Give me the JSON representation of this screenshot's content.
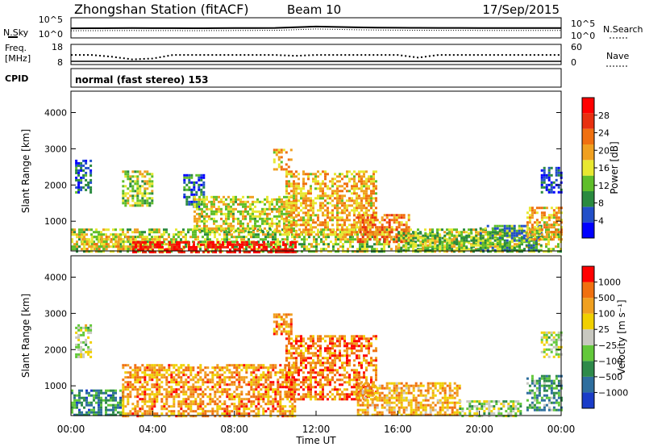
{
  "header": {
    "station": "Zhongshan Station (fitACF)",
    "beam": "Beam 10",
    "date": "17/Sep/2015"
  },
  "panels": {
    "noise": {
      "left_label": "N.Sky",
      "right_label": "N.Search",
      "ticks_left": [
        "10^5",
        "10^0"
      ],
      "ticks_right": [
        "10^5",
        "10^0"
      ]
    },
    "freq": {
      "left_label_1": "Freq.",
      "left_label_2": "[MHz]",
      "right_label": "Nave",
      "ticks_left": [
        "18",
        "8"
      ],
      "ticks_right": [
        "60",
        "0"
      ]
    },
    "cpid": {
      "label": "CPID",
      "text": "normal (fast stereo) 153"
    }
  },
  "colors": {
    "power_scale": [
      "#0000ff",
      "#224fc8",
      "#2a8a3f",
      "#5fbe2a",
      "#e8e830",
      "#f0a020",
      "#f07010",
      "#e83010",
      "#ff0000"
    ],
    "velocity_scale": [
      "#1a3cc8",
      "#2e6e9e",
      "#2e8a4a",
      "#62c83a",
      "#c8c8c0",
      "#f0d000",
      "#f0a020",
      "#f07010",
      "#ff0000"
    ]
  },
  "chart_data": [
    {
      "type": "line",
      "name": "noise-panel",
      "x_unit": "hours UT",
      "x": [
        0,
        1,
        2,
        3,
        4,
        5,
        6,
        7,
        8,
        9,
        10,
        11,
        12,
        13,
        14,
        15,
        16,
        17,
        18,
        19,
        20,
        21,
        22,
        23,
        24
      ],
      "series": [
        {
          "values": [
            300,
            320,
            330,
            350,
            340,
            330,
            320,
            330,
            350,
            380,
            420,
            700,
            1200,
            900,
            650,
            520,
            470,
            440,
            410,
            400,
            390,
            380,
            370,
            360,
            350
          ]
        }
      ],
      "ylog": true
    },
    {
      "type": "line",
      "name": "freq-nave-panel",
      "x": [
        0,
        1,
        2,
        3,
        4,
        5,
        6,
        7,
        8,
        9,
        10,
        11,
        12,
        13,
        14,
        15,
        16,
        17,
        18,
        19,
        20,
        21,
        22,
        23,
        24
      ],
      "series": [
        {
          "values": [
            12.5,
            12.5,
            11.5,
            10,
            10.5,
            12.5,
            12.5,
            12.5,
            12.5,
            12.5,
            12.5,
            12,
            12.5,
            12.5,
            12.5,
            12.5,
            12.5,
            11,
            12.5,
            12.5,
            12.5,
            12.5,
            12.5,
            12.5,
            12.5
          ]
        }
      ],
      "ylim": [
        8,
        18
      ]
    },
    {
      "type": "heatmap",
      "name": "power-panel",
      "ylabel": "Slant Range [km]",
      "colorbar_label": "Power [dB]",
      "colorbar_ticks": [
        "28",
        "24",
        "20",
        "16",
        "12",
        "8",
        "4"
      ],
      "colorbar_range": [
        0,
        32
      ],
      "y_ticks": [
        "4000",
        "3000",
        "2000",
        "1000"
      ],
      "ylim": [
        180,
        4590
      ],
      "xlim": [
        0,
        24
      ],
      "regions": [
        {
          "t": [
            0,
            24
          ],
          "r": [
            180,
            800
          ],
          "level": 0.45
        },
        {
          "t": [
            0.5,
            4.5
          ],
          "r": [
            200,
            600
          ],
          "level": 0.55
        },
        {
          "t": [
            3,
            11
          ],
          "r": [
            180,
            450
          ],
          "level": 0.95
        },
        {
          "t": [
            0.2,
            1
          ],
          "r": [
            1800,
            2700
          ],
          "level": 0.2
        },
        {
          "t": [
            2.5,
            4
          ],
          "r": [
            1400,
            2400
          ],
          "level": 0.45
        },
        {
          "t": [
            5.5,
            6.5
          ],
          "r": [
            1400,
            2300
          ],
          "level": 0.2
        },
        {
          "t": [
            6,
            11
          ],
          "r": [
            700,
            1700
          ],
          "level": 0.5
        },
        {
          "t": [
            9.9,
            10.8
          ],
          "r": [
            2400,
            3000
          ],
          "level": 0.6
        },
        {
          "t": [
            10.5,
            15
          ],
          "r": [
            600,
            2400
          ],
          "level": 0.6
        },
        {
          "t": [
            14,
            16.5
          ],
          "r": [
            400,
            1200
          ],
          "level": 0.7
        },
        {
          "t": [
            16,
            20
          ],
          "r": [
            180,
            700
          ],
          "level": 0.4
        },
        {
          "t": [
            20,
            23
          ],
          "r": [
            180,
            900
          ],
          "level": 0.3
        },
        {
          "t": [
            22.3,
            24
          ],
          "r": [
            500,
            1400
          ],
          "level": 0.6
        },
        {
          "t": [
            23,
            24
          ],
          "r": [
            1800,
            2500
          ],
          "level": 0.15
        }
      ]
    },
    {
      "type": "heatmap",
      "name": "velocity-panel",
      "ylabel": "Slant Range [km]",
      "xlabel": "Time UT",
      "x_ticks": [
        "00:00",
        "04:00",
        "08:00",
        "12:00",
        "16:00",
        "20:00",
        "00:00"
      ],
      "colorbar_label": "Velocity [m s⁻¹]",
      "colorbar_ticks": [
        "1000",
        "500",
        "100",
        "25",
        "−25",
        "−100",
        "−500",
        "−1000"
      ],
      "y_ticks": [
        "4000",
        "3000",
        "2000",
        "1000"
      ],
      "ylim": [
        180,
        4590
      ],
      "xlim": [
        0,
        24
      ],
      "regions": [
        {
          "t": [
            0,
            2.5
          ],
          "r": [
            180,
            900
          ],
          "level": 0.25
        },
        {
          "t": [
            0.2,
            1
          ],
          "r": [
            1800,
            2700
          ],
          "level": 0.5
        },
        {
          "t": [
            2.5,
            11
          ],
          "r": [
            180,
            1600
          ],
          "level": 0.75
        },
        {
          "t": [
            9.9,
            10.8
          ],
          "r": [
            2400,
            3000
          ],
          "level": 0.75
        },
        {
          "t": [
            10.5,
            15
          ],
          "r": [
            600,
            2400
          ],
          "level": 0.8
        },
        {
          "t": [
            14,
            19
          ],
          "r": [
            180,
            1100
          ],
          "level": 0.7
        },
        {
          "t": [
            19,
            22
          ],
          "r": [
            180,
            600
          ],
          "level": 0.45
        },
        {
          "t": [
            22.3,
            24
          ],
          "r": [
            300,
            1300
          ],
          "level": 0.3
        },
        {
          "t": [
            23,
            24
          ],
          "r": [
            1800,
            2500
          ],
          "level": 0.5
        }
      ]
    }
  ]
}
